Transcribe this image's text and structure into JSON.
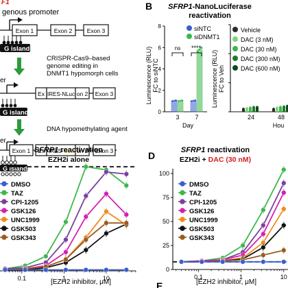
{
  "figure": {
    "panel_a": {
      "label_fragment": "F1",
      "promoter_label": "genous promoter",
      "exons": [
        "Exon 1",
        "Exon 2",
        "Exon 3"
      ],
      "island_label": "G island",
      "step1_text_line1": "CRISPR-Cas9–based",
      "step1_text_line2": "genome editing in",
      "step1_text_line3": "DNMT1 hypomorph cells",
      "edited_segments": [
        "Ex",
        "IRES-NLuc",
        "on 2",
        "Exon 3"
      ],
      "er_label": "er",
      "step2_text": "DNA hypomethylating agent",
      "final_segments": [
        "Exon 1",
        "Ex",
        "IRES-",
        "NLuc",
        "on 2",
        "Exon 3"
      ]
    },
    "panel_b": {
      "letter": "B",
      "title_italic": "SFRP1",
      "title_rest": "-NanoLuciferase",
      "title_line2": "reactivation",
      "left_plot": {
        "ylabel_line1": "Luminescence (RLU)",
        "ylabel_line2": "FC to siNTC",
        "legend": [
          "siNTC",
          "siDNMT1"
        ],
        "sig": [
          "ns",
          "****"
        ],
        "xlabel": "Day"
      },
      "right_plot": {
        "ylabel_line1": "Luminescence (RLU)",
        "ylabel_line2": "FC to Veh",
        "legend": [
          "Vehicle",
          "DAC (3 nM)",
          "DAC (30 nM)",
          "DAC (300 nM)",
          "DAC (600 nM)"
        ],
        "xlabel": "Hou"
      }
    },
    "panel_c": {
      "title_italic": "SFRP1",
      "title_rest": " reactivation",
      "subtitle": "EZH2i alone",
      "legend": [
        "DMSO",
        "TAZ",
        "CPI-1205",
        "GSK126",
        "UNC1999",
        "GSK503",
        "GSK343"
      ],
      "xlabel": "[EZH2 inhibitor, μM]"
    },
    "panel_d": {
      "letter": "D",
      "title_italic": "SFRP1",
      "title_rest": " reactivation",
      "subtitle_black": "EZH2i + ",
      "subtitle_red": "DAC (30 nM)",
      "legend": [
        "DMSO",
        "TAZ",
        "CPI-1205",
        "GSK126",
        "UNC1999",
        "GSK503",
        "GSK343"
      ],
      "xlabel": "[EZH2 inhibitor, μM]"
    },
    "panel_e_letter": "E"
  },
  "colors": {
    "green": "#3cb84a",
    "blue": "#3a5fcd",
    "purple": "#7b3f9e",
    "magenta": "#d61fb2",
    "orange": "#f08a1c",
    "black": "#111111",
    "brown": "#9a5b1c",
    "red": "#d32020",
    "lightgreen": "#7fd37a"
  },
  "chart_data": [
    {
      "type": "bar",
      "categories": [
        "3",
        "7"
      ],
      "x_axis_label": "Day",
      "ylim": [
        0,
        8
      ],
      "yticks": [
        0,
        2,
        4,
        6,
        8
      ],
      "series": [
        {
          "name": "siNTC",
          "values": [
            1.0,
            1.0
          ]
        },
        {
          "name": "siDNMT1",
          "values": [
            1.0,
            5.8
          ]
        }
      ],
      "annotations": [
        "ns",
        "****"
      ]
    },
    {
      "type": "bar",
      "categories": [
        "24",
        "48"
      ],
      "x_axis_label": "Hou",
      "ylim": [
        0,
        15
      ],
      "yticks": [
        0,
        5,
        10,
        15
      ],
      "series": [
        {
          "name": "Vehicle",
          "values": [
            0.5,
            0.5
          ]
        },
        {
          "name": "DAC (3 nM)",
          "values": [
            0.6,
            0.7
          ]
        },
        {
          "name": "DAC (30 nM)",
          "values": [
            0.7,
            0.8
          ]
        },
        {
          "name": "DAC (300 nM)",
          "values": [
            0.8,
            0.9
          ]
        },
        {
          "name": "DAC (600 nM)",
          "values": [
            0.8,
            1.0
          ]
        }
      ]
    },
    {
      "type": "line",
      "x_scale": "log",
      "xlabel": "[EZH2 inhibitor, μM]",
      "xticks": [
        0.1,
        1,
        10
      ],
      "x": [
        0.04,
        0.12,
        0.37,
        1.1,
        3.3,
        10,
        30
      ],
      "reference_line_y": 100,
      "series": [
        {
          "name": "TAZ",
          "values": [
            2,
            5,
            14,
            47,
            100,
            97,
            82
          ]
        },
        {
          "name": "CPI-1205",
          "values": [
            2,
            3,
            8,
            30,
            72,
            95,
            93
          ]
        },
        {
          "name": "GSK126",
          "values": [
            1,
            2,
            5,
            18,
            52,
            74,
            54
          ]
        },
        {
          "name": "UNC1999",
          "values": [
            1,
            2,
            4,
            11,
            32,
            57,
            44
          ]
        },
        {
          "name": "GSK503",
          "values": [
            1,
            1,
            3,
            8,
            20,
            36,
            45
          ]
        },
        {
          "name": "GSK343",
          "values": [
            1,
            2,
            4,
            11,
            30,
            46,
            46
          ]
        },
        {
          "name": "DMSO",
          "values": [
            1,
            1,
            1,
            1,
            1,
            1,
            1
          ]
        }
      ]
    },
    {
      "type": "line",
      "x_scale": "log",
      "xlabel": "[EZH2 inhibitor, μM]",
      "xticks": [
        0.1,
        1,
        10
      ],
      "yticks": [
        0,
        25,
        50,
        75,
        100
      ],
      "ylim": [
        0,
        105
      ],
      "x": [
        0.04,
        0.12,
        0.37,
        1.1,
        3.3,
        10
      ],
      "reference_line_y": 8,
      "series": [
        {
          "name": "TAZ",
          "values": [
            8,
            9,
            12,
            25,
            62,
            104
          ]
        },
        {
          "name": "CPI-1205",
          "values": [
            8,
            9,
            10,
            18,
            46,
            90
          ]
        },
        {
          "name": "GSK126",
          "values": [
            8,
            9,
            10,
            15,
            37,
            80
          ]
        },
        {
          "name": "UNC1999",
          "values": [
            8,
            8,
            9,
            12,
            28,
            63
          ]
        },
        {
          "name": "GSK503",
          "values": [
            8,
            8,
            9,
            11,
            23,
            46
          ]
        },
        {
          "name": "GSK343",
          "values": [
            8,
            8,
            9,
            10,
            15,
            20
          ]
        },
        {
          "name": "DMSO",
          "values": [
            8,
            8,
            8,
            8,
            8,
            8
          ]
        }
      ]
    }
  ]
}
